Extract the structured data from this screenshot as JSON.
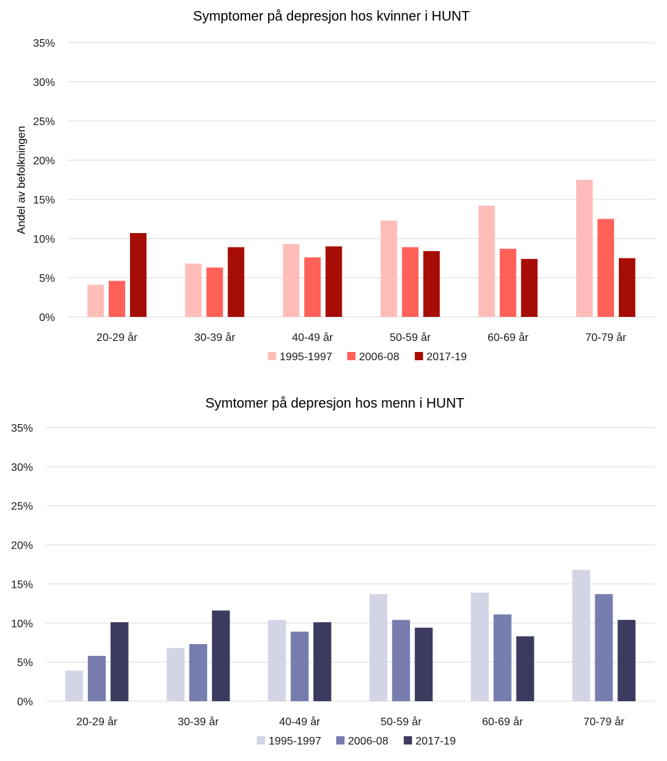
{
  "chart_data": [
    {
      "type": "bar",
      "title": "Symptomer på depresjon hos kvinner i HUNT",
      "xlabel": "",
      "ylabel": "Andel av befolkningen",
      "ylim": [
        0,
        35
      ],
      "yticks": [
        0,
        5,
        10,
        15,
        20,
        25,
        30,
        35
      ],
      "ytick_labels": [
        "0%",
        "5%",
        "10%",
        "15%",
        "20%",
        "25%",
        "30%",
        "35%"
      ],
      "grid": true,
      "legend_position": "bottom",
      "categories": [
        "20-29 år",
        "30-39 år",
        "40-49 år",
        "50-59 år",
        "60-69 år",
        "70-79 år"
      ],
      "series": [
        {
          "name": "1995-1997",
          "color": "#ffbdb9",
          "values": [
            4.1,
            6.8,
            9.3,
            12.3,
            14.2,
            17.5
          ]
        },
        {
          "name": "2006-08",
          "color": "#ff6159",
          "values": [
            4.6,
            6.3,
            7.6,
            8.9,
            8.7,
            12.5
          ]
        },
        {
          "name": "2017-19",
          "color": "#a50d05",
          "values": [
            10.7,
            8.9,
            9.0,
            8.4,
            7.4,
            7.5
          ]
        }
      ]
    },
    {
      "type": "bar",
      "title": "Symtomer på depresjon hos menn i HUNT",
      "xlabel": "",
      "ylabel": "",
      "ylim": [
        0,
        35
      ],
      "yticks": [
        0,
        5,
        10,
        15,
        20,
        25,
        30,
        35
      ],
      "ytick_labels": [
        "0%",
        "5%",
        "10%",
        "15%",
        "20%",
        "25%",
        "30%",
        "35%"
      ],
      "grid": true,
      "legend_position": "bottom",
      "categories": [
        "20-29 år",
        "30-39 år",
        "40-49 år",
        "50-59 år",
        "60-69 år",
        "70-79 år"
      ],
      "series": [
        {
          "name": "1995-1997",
          "color": "#d3d4e6",
          "values": [
            3.9,
            6.8,
            10.4,
            13.7,
            13.9,
            16.8
          ]
        },
        {
          "name": "2006-08",
          "color": "#777dae",
          "values": [
            5.8,
            7.3,
            8.9,
            10.4,
            11.1,
            13.7
          ]
        },
        {
          "name": "2017-19",
          "color": "#3a3b5e",
          "values": [
            10.1,
            11.6,
            10.1,
            9.4,
            8.3,
            10.4
          ]
        }
      ]
    }
  ]
}
